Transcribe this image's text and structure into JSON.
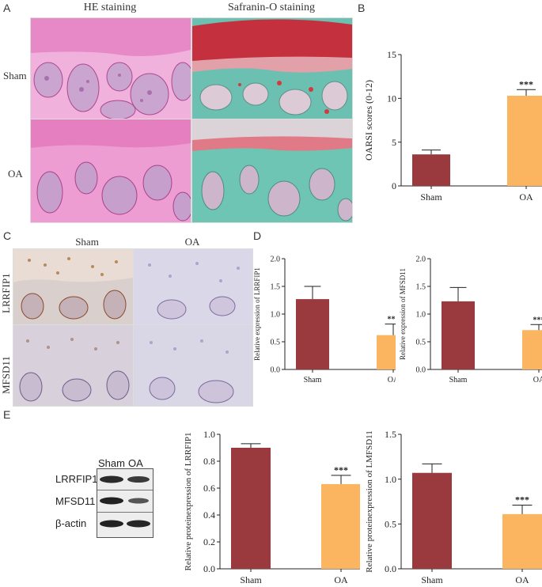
{
  "panels": {
    "A": "A",
    "B": "B",
    "C": "C",
    "D": "D",
    "E": "E"
  },
  "panelA": {
    "col1": "HE staining",
    "col2": "Safranin-O staining",
    "row1": "Sham",
    "row2": "OA"
  },
  "panelC": {
    "col1": "Sham",
    "col2": "OA",
    "row1": "LRRFIP1",
    "row2": "MFSD11"
  },
  "blot": {
    "lanes": [
      "Sham",
      "OA"
    ],
    "rows": [
      "LRRFIP1",
      "MFSD11",
      "β-actin"
    ]
  },
  "colors": {
    "sham": "#9b3a3e",
    "oa": "#fbb45f",
    "he": "#e58cc5",
    "safranin_red": "#c8323c",
    "safranin_green": "#5fb5a7"
  },
  "chart_data": [
    {
      "id": "B",
      "type": "bar",
      "categories": [
        "Sham",
        "OA"
      ],
      "values": [
        3.6,
        10.3
      ],
      "errors": [
        0.5,
        0.7
      ],
      "ylabel": "OARSI scores (0-12)",
      "ylim": [
        0,
        15
      ],
      "yticks": [
        "0",
        "5",
        "10",
        "15"
      ],
      "significance": [
        "",
        "***"
      ]
    },
    {
      "id": "D1",
      "type": "bar",
      "categories": [
        "Sham",
        "OA"
      ],
      "values": [
        1.27,
        0.62
      ],
      "errors": [
        0.23,
        0.2
      ],
      "ylabel": "Relative expression of LRRFIP1",
      "ylim": [
        0,
        2.0
      ],
      "yticks": [
        "0.0",
        "0.5",
        "1.0",
        "1.5",
        "2.0"
      ],
      "significance": [
        "",
        "***"
      ]
    },
    {
      "id": "D2",
      "type": "bar",
      "categories": [
        "Sham",
        "OA"
      ],
      "values": [
        1.23,
        0.71
      ],
      "errors": [
        0.25,
        0.1
      ],
      "ylabel": "Relative expression of MFSD11",
      "ylim": [
        0,
        2.0
      ],
      "yticks": [
        "0.0",
        "0.5",
        "1.0",
        "1.5",
        "2.0"
      ],
      "significance": [
        "",
        "***"
      ]
    },
    {
      "id": "E1",
      "type": "bar",
      "categories": [
        "Sham",
        "OA"
      ],
      "values": [
        0.9,
        0.63
      ],
      "errors": [
        0.03,
        0.065
      ],
      "ylabel": "Relative proteinexpression of LRRFIP1",
      "ylim": [
        0,
        1.0
      ],
      "yticks": [
        "0.0",
        "0.2",
        "0.4",
        "0.6",
        "0.8",
        "1.0"
      ],
      "significance": [
        "",
        "***"
      ]
    },
    {
      "id": "E2",
      "type": "bar",
      "categories": [
        "Sham",
        "OA"
      ],
      "values": [
        1.07,
        0.61
      ],
      "errors": [
        0.1,
        0.1
      ],
      "ylabel": "Relative proteinexpression of LMFSD11",
      "ylim": [
        0,
        1.5
      ],
      "yticks": [
        "0.0",
        "0.5",
        "1.0",
        "1.5"
      ],
      "significance": [
        "",
        "***"
      ]
    }
  ]
}
